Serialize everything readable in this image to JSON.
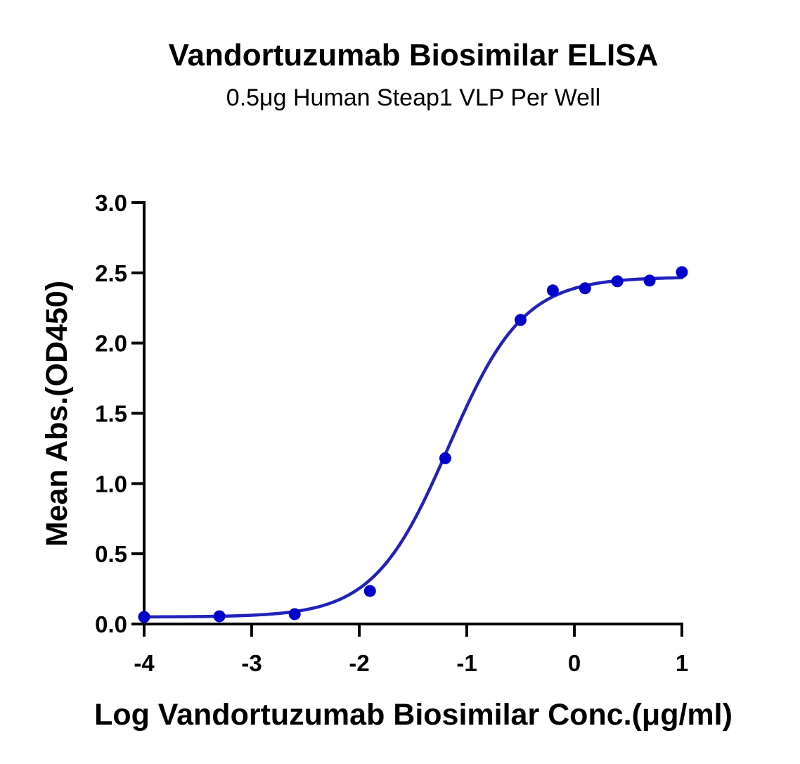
{
  "chart_data": {
    "type": "scatter",
    "title": "Vandortuzumab Biosimilar ELISA",
    "subtitle": "0.5μg Human Steap1 VLP Per Well",
    "xlabel": "Log Vandortuzumab Biosimilar Conc.(μg/ml)",
    "ylabel": "Mean Abs.(OD450)",
    "xlim": [
      -4,
      1
    ],
    "ylim": [
      0,
      3
    ],
    "x_ticks": [
      "-4",
      "-3",
      "-2",
      "-1",
      "0",
      "1"
    ],
    "y_ticks": [
      "0.0",
      "0.5",
      "1.0",
      "1.5",
      "2.0",
      "2.5",
      "3.0"
    ],
    "grid": false,
    "series": [
      {
        "x": [
          -4.0,
          -3.3,
          -2.6,
          -1.9,
          -1.2,
          -0.5,
          -0.2,
          0.1,
          0.4,
          0.7,
          1.0
        ],
        "y": [
          0.05,
          0.055,
          0.07,
          0.235,
          1.18,
          2.165,
          2.375,
          2.39,
          2.44,
          2.445,
          2.505
        ],
        "color": "#0000CD"
      }
    ],
    "fit_curve": {
      "model": "4PL",
      "bottom": 0.05,
      "top": 2.47,
      "log_ec50": -1.17,
      "hill_slope": 1.25,
      "color": "#2222BB"
    }
  }
}
